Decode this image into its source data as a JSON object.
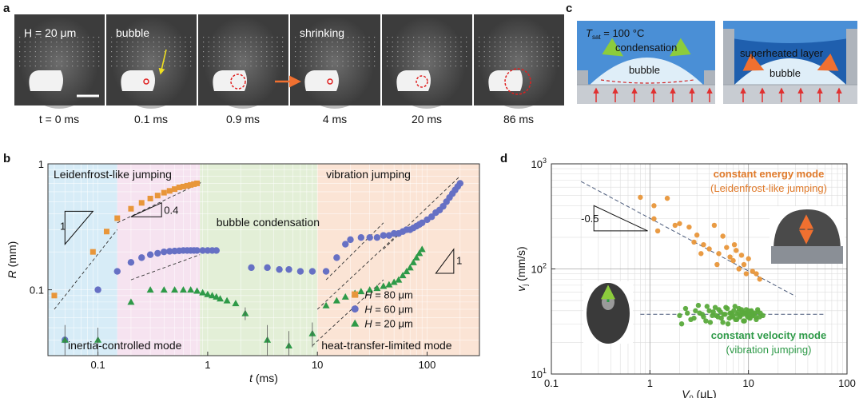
{
  "panel_labels": {
    "a": "a",
    "b": "b",
    "c": "c",
    "d": "d"
  },
  "panel_a": {
    "frame_labels": [
      "H = 20 μm",
      "bubble",
      "",
      "shrinking",
      "",
      ""
    ],
    "times": [
      "t = 0 ms",
      "0.1 ms",
      "0.9 ms",
      "4 ms",
      "20 ms",
      "86 ms"
    ],
    "colors": {
      "frame_bg": "#3c3c3c",
      "droplet": "#f2f2f2",
      "marker": "#e02020",
      "arrow_yellow": "#f0e020",
      "arrow_orange": "#f07030"
    }
  },
  "panel_c": {
    "left": {
      "tsat": "T",
      "tsat_sub": "sat",
      "tsat_value": " = 100 °C",
      "condensation": "condensation",
      "bubble": "bubble"
    },
    "right": {
      "layer": "superheated layer",
      "bubble": "bubble"
    },
    "colors": {
      "liquid": "#4a8fd6",
      "dark_liquid": "#1f5fae",
      "bubble": "#dfeef8",
      "wall": "#c8ccd2",
      "heat_arrow": "#e03030",
      "cond_arrow": "#8ccc3c"
    }
  },
  "chart_data": [
    {
      "panel": "b",
      "type": "scatter",
      "xscale": "log",
      "yscale": "log",
      "xlim": [
        0.035,
        300
      ],
      "ylim": [
        0.03,
        1
      ],
      "xlabel_var": "t",
      "xlabel_unit": " (ms)",
      "ylabel_var": "R",
      "ylabel_unit": " (mm)",
      "x_ticks": [
        0.1,
        1,
        10,
        100
      ],
      "x_tick_labels": [
        "0.1",
        "1",
        "10",
        "100"
      ],
      "y_ticks": [
        0.1,
        1
      ],
      "y_tick_labels": [
        "0.1",
        "1"
      ],
      "regions": [
        {
          "label": "Leidenfrost-like jumping",
          "x_range": [
            0.035,
            0.15
          ],
          "color": "#d7ecf7"
        },
        {
          "label": "",
          "x_range": [
            0.15,
            0.85
          ],
          "color": "#f6e3f0"
        },
        {
          "label": "bubble condensation",
          "x_range": [
            0.85,
            10
          ],
          "color": "#e3efd7"
        },
        {
          "label": "vibration jumping",
          "x_range": [
            10,
            300
          ],
          "color": "#fbe4d5"
        }
      ],
      "region_texts": {
        "top_left": "Leidenfrost-like jumping",
        "middle": "bubble condensation",
        "top_right": "vibration jumping",
        "bottom_left": "inertia-controlled mode",
        "bottom_right": "heat-transfer-limited mode"
      },
      "slope_labels": {
        "left_one": "1",
        "left_small": "0.4",
        "right_one": "1"
      },
      "series": [
        {
          "name": "H = 80 μm",
          "h_label": "H",
          "h_value": " = 80 μm",
          "marker": "square",
          "color": "#e8963a",
          "x": [
            0.04,
            0.09,
            0.12,
            0.15,
            0.2,
            0.25,
            0.3,
            0.35,
            0.4,
            0.45,
            0.5,
            0.55,
            0.6,
            0.65,
            0.7,
            0.75,
            0.8
          ],
          "y": [
            0.09,
            0.2,
            0.29,
            0.37,
            0.44,
            0.49,
            0.53,
            0.56,
            0.59,
            0.61,
            0.63,
            0.65,
            0.66,
            0.67,
            0.68,
            0.69,
            0.7
          ]
        },
        {
          "name": "H = 60 μm",
          "h_label": "H",
          "h_value": " = 60 μm",
          "marker": "circle",
          "color": "#6670c4",
          "x": [
            0.05,
            0.1,
            0.15,
            0.2,
            0.25,
            0.3,
            0.35,
            0.4,
            0.45,
            0.5,
            0.55,
            0.6,
            0.65,
            0.7,
            0.75,
            0.8,
            0.9,
            1.0,
            1.1,
            1.2,
            2.5,
            3.5,
            4.5,
            5.5,
            7,
            9,
            12,
            15,
            18,
            20,
            25,
            30,
            35,
            40,
            45,
            50,
            55,
            60,
            65,
            70,
            75,
            80,
            85,
            90,
            100,
            110,
            120,
            130,
            140,
            150,
            160,
            170,
            180,
            190,
            200
          ],
          "y": [
            0.04,
            0.1,
            0.14,
            0.165,
            0.18,
            0.19,
            0.195,
            0.2,
            0.202,
            0.203,
            0.204,
            0.205,
            0.205,
            0.205,
            0.205,
            0.205,
            0.205,
            0.205,
            0.205,
            0.205,
            0.15,
            0.15,
            0.145,
            0.145,
            0.14,
            0.14,
            0.14,
            0.18,
            0.23,
            0.25,
            0.26,
            0.26,
            0.26,
            0.27,
            0.27,
            0.28,
            0.28,
            0.29,
            0.3,
            0.3,
            0.31,
            0.32,
            0.33,
            0.34,
            0.36,
            0.38,
            0.41,
            0.43,
            0.46,
            0.5,
            0.54,
            0.58,
            0.62,
            0.66,
            0.7
          ]
        },
        {
          "name": "H = 20 μm",
          "h_label": "H",
          "h_value": " = 20 μm",
          "marker": "triangle",
          "color": "#2e9a48",
          "x": [
            0.05,
            0.1,
            0.2,
            0.3,
            0.4,
            0.5,
            0.6,
            0.7,
            0.8,
            0.9,
            1.0,
            1.1,
            1.2,
            1.3,
            1.5,
            1.8,
            2.2,
            3.5,
            5.5,
            9,
            12,
            15,
            18,
            22,
            25,
            30,
            35,
            40,
            45,
            50,
            55,
            60,
            65,
            70,
            75,
            80,
            85,
            90
          ],
          "y": [
            0.04,
            0.04,
            0.08,
            0.1,
            0.1,
            0.1,
            0.1,
            0.1,
            0.098,
            0.095,
            0.092,
            0.09,
            0.088,
            0.085,
            0.082,
            0.078,
            0.065,
            0.04,
            0.036,
            0.045,
            0.075,
            0.082,
            0.088,
            0.094,
            0.097,
            0.1,
            0.103,
            0.107,
            0.11,
            0.115,
            0.12,
            0.13,
            0.14,
            0.15,
            0.165,
            0.18,
            0.195,
            0.21
          ]
        }
      ]
    },
    {
      "panel": "d",
      "type": "scatter",
      "xscale": "log",
      "yscale": "log",
      "xlim": [
        0.1,
        100
      ],
      "ylim": [
        10,
        1000
      ],
      "xlabel_var": "V",
      "xlabel_sub": "0",
      "xlabel_unit": " (μL)",
      "ylabel_var": "v",
      "ylabel_sub": "j",
      "ylabel_unit": " (mm/s)",
      "x_ticks": [
        0.1,
        1,
        10,
        100
      ],
      "x_tick_labels": [
        "0.1",
        "1",
        "10",
        "100"
      ],
      "y_ticks": [
        10,
        100,
        1000
      ],
      "y_tick_labels": [
        "10",
        "10",
        "10"
      ],
      "y_tick_sups": [
        "1",
        "2",
        "3"
      ],
      "slope_label": "-0.5",
      "fit_energy": {
        "x": [
          0.2,
          30
        ],
        "y": [
          680,
          55
        ]
      },
      "fit_velocity": {
        "x": [
          0.8,
          60
        ],
        "y": [
          37,
          37
        ]
      },
      "annotations": [
        {
          "text": "constant energy mode",
          "color": "#e07a2a",
          "bold": true
        },
        {
          "text": "(Leidenfrost-like jumping)",
          "color": "#e07a2a",
          "bold": false
        },
        {
          "text": "constant velocity mode",
          "color": "#2e9a48",
          "bold": true
        },
        {
          "text": "(vibration jumping)",
          "color": "#2e9a48",
          "bold": false
        }
      ],
      "series": [
        {
          "name": "constant energy mode",
          "color": "#e8963a",
          "x": [
            0.8,
            1.1,
            1.5,
            1.1,
            1.8,
            1.2,
            2.0,
            2.5,
            3.0,
            2.8,
            3.5,
            4.0,
            4.5,
            5.0,
            6.0,
            6.5,
            7.0,
            7.5,
            8.0,
            9.0,
            10,
            11,
            12,
            13,
            3.3,
            4.8,
            5.5,
            8.5,
            7.2,
            9.5
          ],
          "y": [
            480,
            400,
            470,
            300,
            260,
            230,
            270,
            250,
            210,
            180,
            170,
            155,
            260,
            140,
            160,
            130,
            120,
            150,
            100,
            110,
            125,
            95,
            90,
            80,
            140,
            110,
            205,
            135,
            170,
            90
          ]
        },
        {
          "name": "constant velocity mode",
          "color": "#5aaa3c",
          "x": [
            2.0,
            2.3,
            2.6,
            2.9,
            3.2,
            3.5,
            3.8,
            4.1,
            4.4,
            4.7,
            5.0,
            5.3,
            5.6,
            5.9,
            6.2,
            6.5,
            6.8,
            7.1,
            7.4,
            7.7,
            8.0,
            8.3,
            8.6,
            8.9,
            9.2,
            9.5,
            9.8,
            10.1,
            10.4,
            10.7,
            11.0,
            11.5,
            12.0,
            12.5,
            13.0,
            2.1,
            2.4,
            2.8,
            3.1,
            3.4,
            3.7,
            4.0,
            4.3,
            4.6,
            4.9,
            5.2,
            5.5,
            5.8,
            6.1,
            6.4,
            6.7,
            7.0,
            7.3,
            7.6,
            7.9,
            8.2,
            8.5,
            8.8,
            9.1,
            9.4,
            9.7,
            10.0,
            10.3,
            10.6,
            11.2,
            11.8,
            12.4,
            13.2,
            14.0
          ],
          "y": [
            36,
            42,
            33,
            40,
            38,
            35,
            44,
            31,
            39,
            36,
            41,
            34,
            37,
            43,
            30,
            38,
            35,
            40,
            33,
            37,
            42,
            36,
            39,
            32,
            38,
            41,
            35,
            37,
            34,
            40,
            36,
            38,
            33,
            39,
            35,
            30,
            38,
            34,
            45,
            37,
            32,
            40,
            36,
            43,
            35,
            39,
            31,
            37,
            42,
            34,
            38,
            36,
            44,
            33,
            39,
            35,
            41,
            37,
            32,
            38,
            36,
            40,
            34,
            39,
            37,
            35,
            41,
            38,
            36
          ]
        }
      ]
    }
  ]
}
